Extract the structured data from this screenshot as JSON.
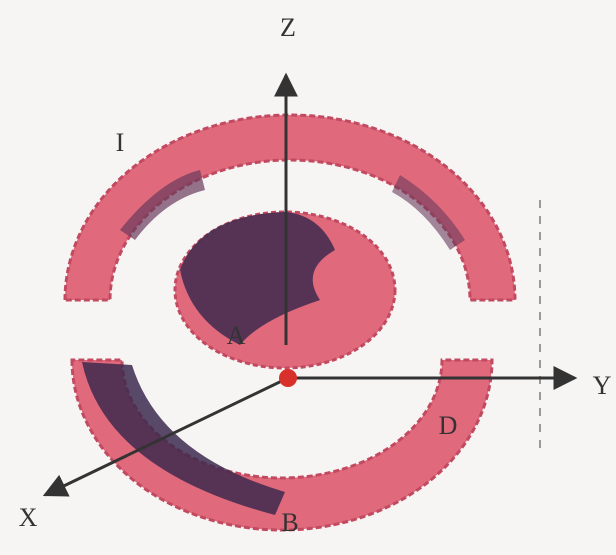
{
  "axes": {
    "z": "Z",
    "y": "Y",
    "x": "X"
  },
  "regions": {
    "upper": "I",
    "center": "A",
    "right": "D",
    "bottom": "B"
  }
}
